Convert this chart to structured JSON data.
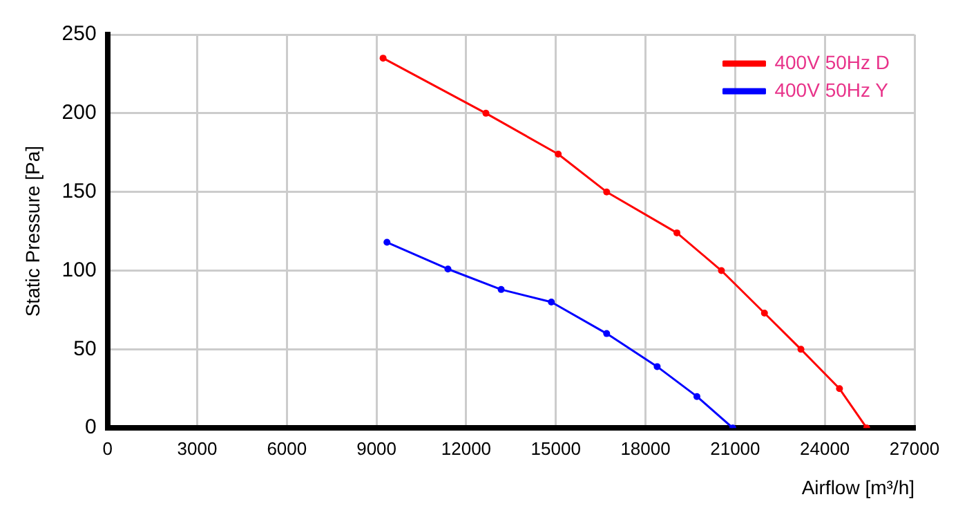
{
  "chart_data": {
    "type": "line",
    "xlabel": "Airflow [m³/h]",
    "ylabel": "Static Pressure [Pa]",
    "xlim": [
      0,
      27000
    ],
    "xticks": [
      0,
      3000,
      6000,
      9000,
      12000,
      15000,
      18000,
      21000,
      24000,
      27000
    ],
    "ylim": [
      0,
      250
    ],
    "yticks": [
      0,
      50,
      100,
      150,
      200,
      250
    ],
    "grid": true,
    "legend": "top right",
    "marker": "circle",
    "line_style": "solid",
    "series": [
      {
        "name": "400V 50Hz D",
        "color": "#ff0000",
        "x": [
          9220,
          12660,
          15080,
          16700,
          19050,
          20540,
          21980,
          23200,
          24490,
          25400
        ],
        "values": [
          235,
          200,
          174,
          150,
          124,
          100,
          73,
          50,
          25,
          0
        ]
      },
      {
        "name": "400V 50Hz Y",
        "color": "#0000ff",
        "x": [
          9350,
          11390,
          13170,
          14850,
          16700,
          18390,
          19720,
          20920
        ],
        "values": [
          118,
          101,
          88,
          80,
          60,
          39,
          20,
          0
        ]
      }
    ]
  }
}
